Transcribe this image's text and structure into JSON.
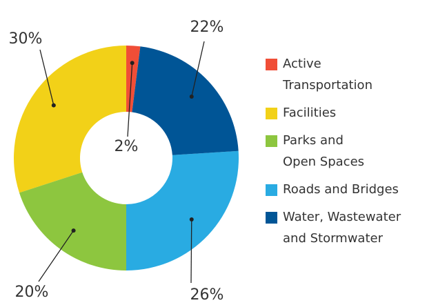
{
  "chart_data": {
    "type": "donut",
    "categories": [
      "Active\nTransportation",
      "Facilities",
      "Parks and\nOpen Spaces",
      "Roads and Bridges",
      "Water, Wastewater\nand Stormwater"
    ],
    "values": [
      2,
      30,
      20,
      26,
      22
    ],
    "value_labels": [
      "2%",
      "30%",
      "20%",
      "26%",
      "22%"
    ],
    "colors": [
      "#f04e37",
      "#f2d118",
      "#8dc63f",
      "#29abe2",
      "#005596"
    ],
    "legend": "right"
  }
}
